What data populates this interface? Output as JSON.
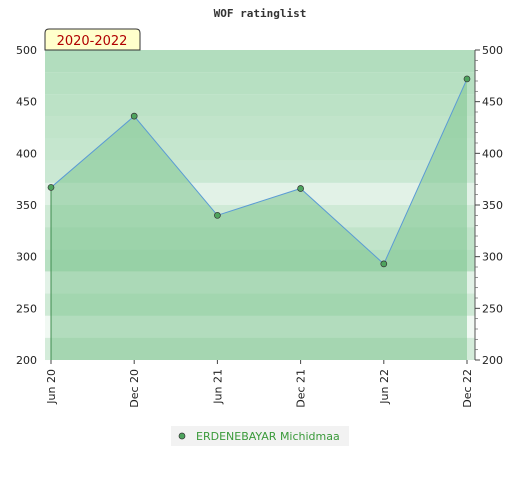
{
  "chart_data": {
    "type": "area",
    "title": "WOF ratinglist",
    "period_label": "2020-2022",
    "x": [
      "Jun 20",
      "Dec 20",
      "Jun 21",
      "Dec 21",
      "Jun 22",
      "Dec 22"
    ],
    "series": [
      {
        "name": "ERDENEBAYAR Michidmaa",
        "values": [
          367,
          436,
          340,
          366,
          293,
          472
        ]
      }
    ],
    "ylim": [
      200,
      500
    ],
    "yticks": [
      200,
      250,
      300,
      350,
      400,
      450,
      500
    ],
    "grid": true,
    "legend_position": "bottom-center",
    "colors": {
      "line": "#5b9bd5",
      "fill": "#7ec58f",
      "marker": "#4ea45e",
      "band_dark": "#8ccc9c",
      "band_light": "#eef7f0"
    }
  }
}
